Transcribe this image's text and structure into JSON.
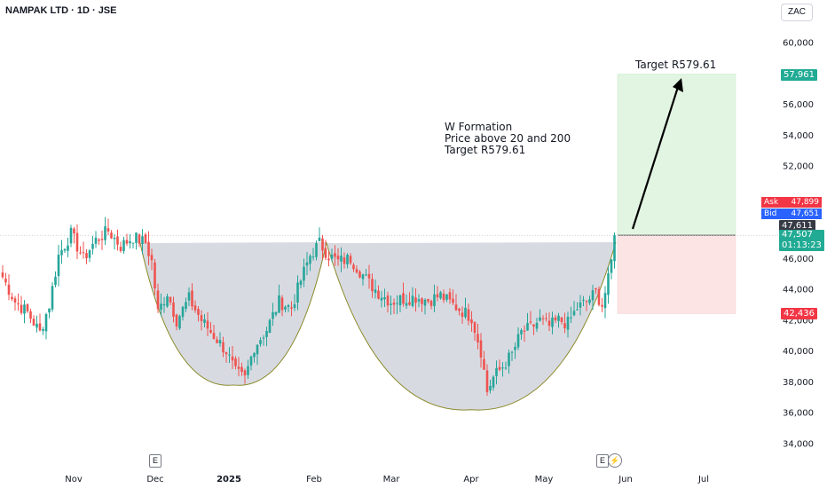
{
  "header": {
    "title": "NAMPAK LTD · 1D · JSE",
    "currency": "ZAC"
  },
  "colors": {
    "up": "#26a69a",
    "down": "#ef5350",
    "pattern_fill": "#d1d4dc",
    "pattern_edge": "#8a8a2a",
    "target_zone": "#e2f5e2",
    "stop_zone": "#fde4e4"
  },
  "annotation": {
    "lines": [
      "W Formation",
      "Price above 20 and 200",
      "Target R579.61"
    ],
    "target_label": "Target R579.61"
  },
  "price_tags": {
    "target": "57,961",
    "ask_label": "Ask",
    "ask": "47,899",
    "bid_label": "Bid",
    "bid": "47,651",
    "prev": "47,611",
    "last": "47,507",
    "countdown": "01:13:23",
    "stop": "42,436"
  },
  "earnings_icons": [
    "E",
    "E"
  ],
  "chart_data": {
    "type": "candlestick",
    "title": "NAMPAK LTD · 1D · JSE",
    "y_ticks": [
      34000,
      36000,
      38000,
      40000,
      42000,
      44000,
      46000,
      48000,
      50000,
      52000,
      54000,
      56000,
      58000,
      60000
    ],
    "y_tick_labels": [
      "34,000",
      "36,000",
      "38,000",
      "40,000",
      "42,000",
      "44,000",
      "46,000",
      "48,000",
      "50,000",
      "52,000",
      "54,000",
      "56,000",
      "58,000",
      "60,000"
    ],
    "ylim": [
      33000,
      62000
    ],
    "x_labels": [
      "Nov",
      "Dec",
      "2025",
      "Feb",
      "Mar",
      "Apr",
      "May",
      "Jun",
      "Jul"
    ],
    "anchor_closes": [
      [
        0,
        44800
      ],
      [
        4,
        43200
      ],
      [
        8,
        42500
      ],
      [
        12,
        41200
      ],
      [
        15,
        43000
      ],
      [
        18,
        46200
      ],
      [
        22,
        47600
      ],
      [
        26,
        46000
      ],
      [
        30,
        47200
      ],
      [
        34,
        47800
      ],
      [
        38,
        46800
      ],
      [
        42,
        47400
      ],
      [
        46,
        47000
      ],
      [
        48,
        45800
      ],
      [
        50,
        42500
      ],
      [
        53,
        43800
      ],
      [
        56,
        42000
      ],
      [
        60,
        43400
      ],
      [
        64,
        42000
      ],
      [
        68,
        41000
      ],
      [
        72,
        40000
      ],
      [
        75,
        38600
      ],
      [
        78,
        38200
      ],
      [
        81,
        40300
      ],
      [
        85,
        41400
      ],
      [
        89,
        43200
      ],
      [
        93,
        42800
      ],
      [
        96,
        44600
      ],
      [
        99,
        46200
      ],
      [
        102,
        47000
      ],
      [
        105,
        46200
      ],
      [
        108,
        45800
      ],
      [
        112,
        46000
      ],
      [
        115,
        45200
      ],
      [
        118,
        44400
      ],
      [
        121,
        43800
      ],
      [
        125,
        43200
      ],
      [
        129,
        43400
      ],
      [
        133,
        43500
      ],
      [
        137,
        43300
      ],
      [
        141,
        43600
      ],
      [
        145,
        43000
      ],
      [
        148,
        42600
      ],
      [
        151,
        42200
      ],
      [
        154,
        40000
      ],
      [
        156,
        37400
      ],
      [
        158,
        38300
      ],
      [
        161,
        39000
      ],
      [
        164,
        39800
      ],
      [
        167,
        41200
      ],
      [
        170,
        41500
      ],
      [
        173,
        42000
      ],
      [
        176,
        41600
      ],
      [
        179,
        42000
      ],
      [
        182,
        41800
      ],
      [
        185,
        42800
      ],
      [
        188,
        43200
      ],
      [
        191,
        43800
      ],
      [
        193,
        43000
      ],
      [
        195,
        44600
      ],
      [
        196,
        45800
      ],
      [
        197,
        47500
      ]
    ],
    "pattern": {
      "rim_price": 47000,
      "cup1_bottom": 37800,
      "cup2_bottom": 36200
    },
    "target_price": 57961,
    "entry_price": 47507,
    "stop_price": 42436
  }
}
